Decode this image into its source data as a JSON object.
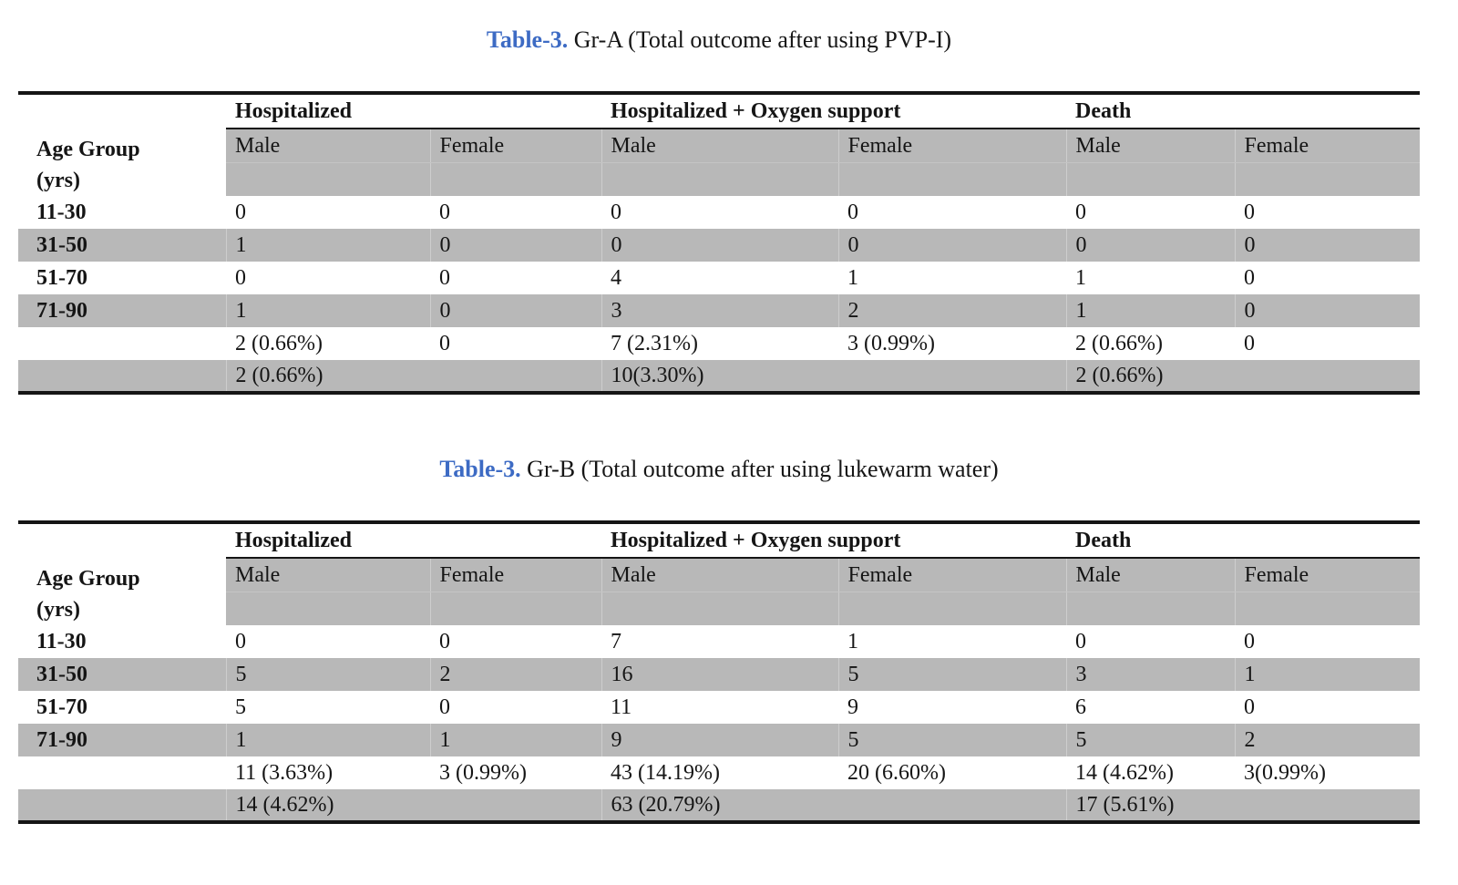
{
  "colors": {
    "accent_blue": "#3d6bc4",
    "row_gray": "#b8b8b8",
    "border_black": "#151515"
  },
  "header": {
    "age_line1": "Age Group",
    "age_line2": "(yrs)",
    "group_headers": [
      "Hospitalized",
      "Hospitalized + Oxygen support",
      "Death"
    ],
    "sub_headers": [
      "Male",
      "Female",
      "Male",
      "Female",
      "Male",
      "Female"
    ]
  },
  "tables": [
    {
      "title_label": "Table-3.",
      "title_text": "Gr-A (Total outcome after using PVP-I)",
      "age_groups": [
        "11-30",
        "31-50",
        "51-70",
        "71-90"
      ],
      "data_rows": [
        [
          "0",
          "0",
          "0",
          "0",
          "0",
          "0"
        ],
        [
          "1",
          "0",
          "0",
          "0",
          "0",
          "0"
        ],
        [
          "0",
          "0",
          "4",
          "1",
          "1",
          "0"
        ],
        [
          "1",
          "0",
          "3",
          "2",
          "1",
          "0"
        ]
      ],
      "totals_row": [
        "2 (0.66%)",
        "0",
        "7 (2.31%)",
        "3 (0.99%)",
        "2 (0.66%)",
        "0"
      ],
      "combined_row": [
        "2 (0.66%)",
        "10(3.30%)",
        "2 (0.66%)"
      ]
    },
    {
      "title_label": "Table-3.",
      "title_text": "Gr-B (Total outcome after using lukewarm water)",
      "age_groups": [
        "11-30",
        "31-50",
        "51-70",
        "71-90"
      ],
      "data_rows": [
        [
          "0",
          "0",
          "7",
          "1",
          "0",
          "0"
        ],
        [
          "5",
          "2",
          "16",
          "5",
          "3",
          "1"
        ],
        [
          "5",
          "0",
          "11",
          "9",
          "6",
          "0"
        ],
        [
          "1",
          "1",
          "9",
          "5",
          "5",
          "2"
        ]
      ],
      "totals_row": [
        "11 (3.63%)",
        "3 (0.99%)",
        "43 (14.19%)",
        "20 (6.60%)",
        "14 (4.62%)",
        "3(0.99%)"
      ],
      "combined_row": [
        "14 (4.62%)",
        "63 (20.79%)",
        "17 (5.61%)"
      ]
    }
  ]
}
